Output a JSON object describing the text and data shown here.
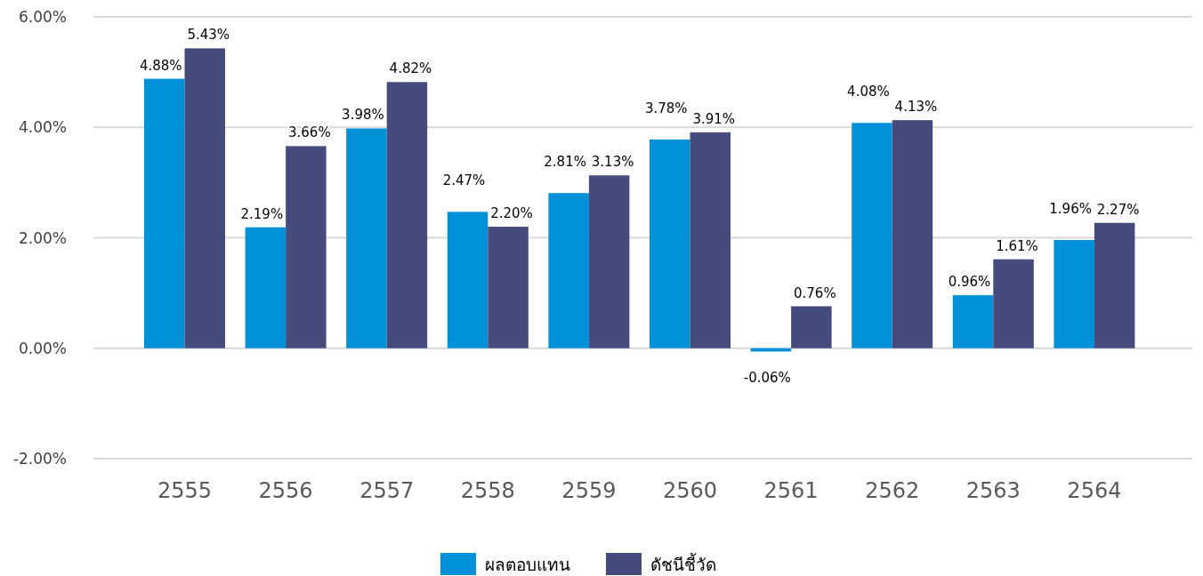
{
  "chart_data": {
    "type": "bar",
    "categories": [
      "2555",
      "2556",
      "2557",
      "2558",
      "2559",
      "2560",
      "2561",
      "2562",
      "2563",
      "2564"
    ],
    "series": [
      {
        "name": "ผลตอบแทน",
        "color": "#0091d9",
        "values": [
          4.88,
          2.19,
          3.98,
          2.47,
          2.81,
          3.78,
          -0.06,
          4.08,
          0.96,
          1.96
        ],
        "value_labels": [
          "4.88%",
          "2.19%",
          "3.98%",
          "2.47%",
          "2.81%",
          "3.78%",
          "-0.06%",
          "4.08%",
          "0.96%",
          "1.96%"
        ]
      },
      {
        "name": "ดัชนีชี้วัด",
        "color": "#454b7d",
        "values": [
          5.43,
          3.66,
          4.82,
          2.2,
          3.13,
          3.91,
          0.76,
          4.13,
          1.61,
          2.27
        ],
        "value_labels": [
          "5.43%",
          "3.66%",
          "4.82%",
          "2.20%",
          "3.13%",
          "3.91%",
          "0.76%",
          "4.13%",
          "1.61%",
          "2.27%"
        ]
      }
    ],
    "ylim": [
      -2,
      6
    ],
    "yticks": [
      {
        "value": -2,
        "label": "-2.00%"
      },
      {
        "value": 0,
        "label": "0.00%"
      },
      {
        "value": 2,
        "label": "2.00%"
      },
      {
        "value": 4,
        "label": "4.00%"
      },
      {
        "value": 6,
        "label": "6.00%"
      }
    ],
    "grid": "y",
    "legend": "bottom"
  }
}
